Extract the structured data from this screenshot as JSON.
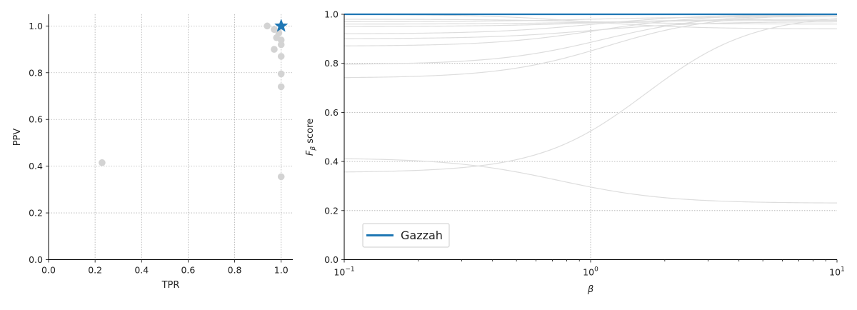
{
  "chart_data": [
    {
      "type": "scatter",
      "xlabel": "TPR",
      "ylabel": "PPV",
      "xlim": [
        0.0,
        1.05
      ],
      "ylim": [
        0.0,
        1.05
      ],
      "xticks": [
        "0.0",
        "0.2",
        "0.4",
        "0.6",
        "0.8",
        "1.0"
      ],
      "yticks": [
        "0.0",
        "0.2",
        "0.4",
        "0.6",
        "0.8",
        "1.0"
      ],
      "grid": true,
      "colors": {
        "others": "#d3d3d3",
        "highlight": "#1f77b4"
      },
      "points": [
        {
          "x": 0.23,
          "y": 0.415
        },
        {
          "x": 0.94,
          "y": 1.0
        },
        {
          "x": 0.97,
          "y": 0.985
        },
        {
          "x": 0.98,
          "y": 0.95
        },
        {
          "x": 0.99,
          "y": 0.97
        },
        {
          "x": 1.0,
          "y": 0.94
        },
        {
          "x": 1.0,
          "y": 0.92
        },
        {
          "x": 0.97,
          "y": 0.9
        },
        {
          "x": 1.0,
          "y": 0.87
        },
        {
          "x": 1.0,
          "y": 0.795
        },
        {
          "x": 1.0,
          "y": 0.74
        },
        {
          "x": 1.0,
          "y": 0.355
        }
      ],
      "highlight": {
        "name": "Gazzah",
        "x": 1.0,
        "y": 1.0,
        "marker": "star"
      }
    },
    {
      "type": "line",
      "xlabel": "β",
      "ylabel_main": "F",
      "ylabel_sub": "β",
      "ylabel_suffix": " score",
      "xscale": "log",
      "xlim": [
        0.1,
        10
      ],
      "ylim": [
        0.0,
        1.0
      ],
      "xticks": [
        {
          "value": 0.1,
          "base": "10",
          "exp": "−1"
        },
        {
          "value": 1,
          "base": "10",
          "exp": "0"
        },
        {
          "value": 10,
          "base": "10",
          "exp": "1"
        }
      ],
      "yticks": [
        "0.0",
        "0.2",
        "0.4",
        "0.6",
        "0.8",
        "1.0"
      ],
      "grid": true,
      "legend_position": "lower-left",
      "legend": [
        "Gazzah"
      ],
      "colors": {
        "others": "#dddddd",
        "highlight": "#1f77b4"
      },
      "highlight": {
        "name": "Gazzah",
        "tpr": 1.0,
        "ppv": 1.0
      },
      "others": [
        {
          "tpr": 0.23,
          "ppv": 0.415
        },
        {
          "tpr": 1.0,
          "ppv": 0.355
        },
        {
          "tpr": 1.0,
          "ppv": 0.74
        },
        {
          "tpr": 1.0,
          "ppv": 0.795
        },
        {
          "tpr": 1.0,
          "ppv": 0.87
        },
        {
          "tpr": 1.0,
          "ppv": 0.92
        },
        {
          "tpr": 0.94,
          "ppv": 1.0
        },
        {
          "tpr": 0.96,
          "ppv": 0.98
        },
        {
          "tpr": 0.98,
          "ppv": 0.95
        },
        {
          "tpr": 0.99,
          "ppv": 0.97
        },
        {
          "tpr": 0.97,
          "ppv": 0.9
        },
        {
          "tpr": 0.975,
          "ppv": 0.96
        }
      ]
    }
  ]
}
